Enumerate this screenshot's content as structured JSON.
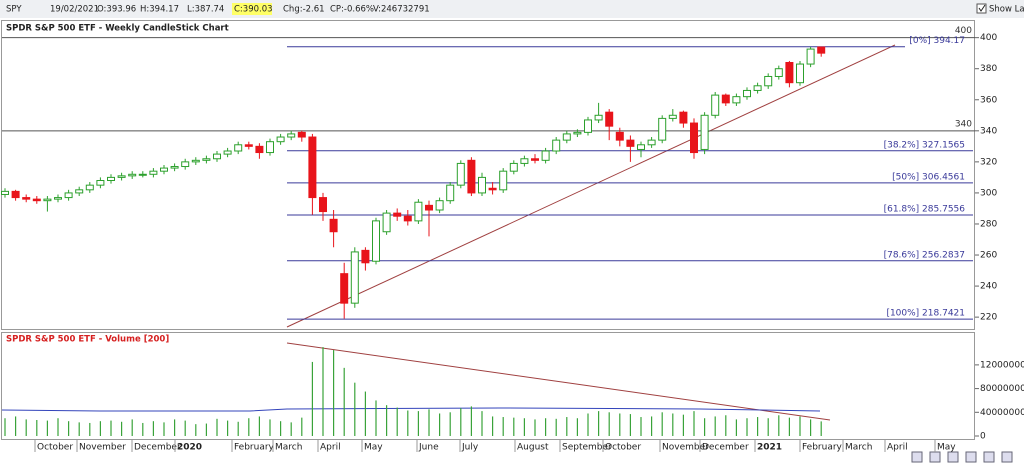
{
  "header": {
    "symbol": "SPY",
    "date": "19/02/2021",
    "open": "O:393.96",
    "high": "H:394.17",
    "low": "L:387.74",
    "close": "C:390.03",
    "change": "Chg:-2.61",
    "change_pct": "CP:-0.66%",
    "volume": "V:246732791",
    "show_last": "Show Last"
  },
  "chart_data": [
    {
      "type": "candlestick",
      "title": "SPDR S&P 500 ETF - Weekly CandleStick Chart",
      "x_labels": [
        "October",
        "November",
        "December",
        "2020",
        "February",
        "March",
        "April",
        "May",
        "June",
        "July",
        "August",
        "September",
        "October",
        "November",
        "December",
        "2021",
        "February",
        "March",
        "April",
        "May"
      ],
      "open": [
        299,
        301,
        297,
        296,
        295,
        296,
        297,
        300,
        302,
        305,
        308,
        310,
        311,
        312,
        312,
        314,
        316,
        317,
        320,
        321,
        322,
        325,
        327,
        331,
        330,
        326,
        333,
        336,
        339,
        336,
        297,
        283,
        248,
        229,
        263,
        256,
        275,
        287,
        285,
        282,
        292,
        289,
        295,
        305,
        321,
        300,
        303,
        302,
        314,
        319,
        322,
        321,
        327,
        334,
        338,
        339,
        347,
        352,
        339,
        334,
        328,
        331,
        334,
        348,
        352,
        345,
        328,
        350,
        363,
        358,
        362,
        366,
        369,
        375,
        384,
        371,
        383,
        393.96
      ],
      "high": [
        303,
        302,
        299,
        298,
        298,
        299,
        302,
        304,
        307,
        310,
        312,
        313,
        314,
        314,
        316,
        318,
        319,
        322,
        323,
        324,
        327,
        329,
        333,
        333,
        332,
        335,
        338,
        340,
        340,
        338,
        300,
        289,
        255,
        265,
        265,
        284,
        289,
        290,
        289,
        296,
        295,
        297,
        307,
        321,
        323,
        313,
        307,
        316,
        321,
        324,
        325,
        329,
        336,
        340,
        341,
        349,
        358,
        354,
        342,
        337,
        333,
        336,
        350,
        354,
        353,
        348,
        352,
        365,
        364,
        364,
        368,
        371,
        377,
        382,
        385,
        385,
        394,
        394.17
      ],
      "low": [
        297,
        295,
        294,
        293,
        288,
        294,
        295,
        298,
        300,
        303,
        306,
        308,
        309,
        310,
        310,
        312,
        314,
        315,
        318,
        319,
        320,
        323,
        325,
        328,
        322,
        324,
        331,
        334,
        333,
        286,
        282,
        265,
        219,
        226,
        250,
        254,
        273,
        282,
        279,
        280,
        272,
        287,
        293,
        303,
        298,
        298,
        299,
        300,
        312,
        317,
        319,
        319,
        325,
        332,
        336,
        337,
        345,
        334,
        330,
        320,
        323,
        329,
        332,
        346,
        342,
        322,
        325,
        348,
        356,
        356,
        360,
        364,
        367,
        373,
        368,
        369,
        381,
        387.74
      ],
      "close": [
        301,
        297,
        296,
        295,
        296,
        297,
        300,
        302,
        305,
        308,
        310,
        311,
        312,
        312,
        314,
        316,
        317,
        320,
        321,
        322,
        325,
        327,
        331,
        330,
        326,
        333,
        336,
        338,
        336,
        297,
        288,
        275,
        229,
        262,
        255,
        282,
        287,
        285,
        282,
        294,
        289,
        295,
        305,
        319,
        300,
        310,
        302,
        314,
        319,
        322,
        321,
        327,
        334,
        338,
        339,
        347,
        350,
        343,
        334,
        330,
        331,
        334,
        348,
        350,
        345,
        326,
        350,
        363,
        358,
        362,
        366,
        369,
        375,
        380,
        371,
        383,
        392.64,
        390.03
      ],
      "up_color": "#2ca02c",
      "down_color": "#e8141b",
      "ylim": [
        213,
        403
      ],
      "yticks": [
        220,
        240,
        260,
        280,
        300,
        320,
        340,
        360,
        380,
        400
      ],
      "levels": [
        400,
        340
      ],
      "fib_levels": [
        {
          "value": 394.17,
          "label": "[0%] 394.17"
        },
        {
          "value": 327.1565,
          "label": "[38.2%] 327.1565"
        },
        {
          "value": 306.4561,
          "label": "[50%] 306.4561"
        },
        {
          "value": 285.7556,
          "label": "[61.8%] 285.7556"
        },
        {
          "value": 256.2837,
          "label": "[78.6%] 256.2837"
        },
        {
          "value": 218.7421,
          "label": "[100%] 218.7421"
        }
      ]
    },
    {
      "type": "bar",
      "title": "SPDR S&P 500 ETF - Volume [200]",
      "color": "#3aa33a",
      "values": [
        300000000,
        330000000,
        280000000,
        270000000,
        260000000,
        300000000,
        250000000,
        230000000,
        220000000,
        250000000,
        260000000,
        240000000,
        280000000,
        220000000,
        250000000,
        230000000,
        280000000,
        260000000,
        200000000,
        210000000,
        290000000,
        260000000,
        240000000,
        300000000,
        330000000,
        280000000,
        250000000,
        230000000,
        310000000,
        1250000000,
        1500000000,
        1450000000,
        1150000000,
        900000000,
        750000000,
        600000000,
        520000000,
        480000000,
        430000000,
        420000000,
        450000000,
        380000000,
        400000000,
        470000000,
        500000000,
        420000000,
        330000000,
        320000000,
        310000000,
        300000000,
        280000000,
        300000000,
        290000000,
        320000000,
        300000000,
        380000000,
        420000000,
        400000000,
        380000000,
        370000000,
        320000000,
        330000000,
        400000000,
        380000000,
        360000000,
        420000000,
        300000000,
        330000000,
        350000000,
        280000000,
        300000000,
        320000000,
        300000000,
        350000000,
        310000000,
        330000000,
        280000000,
        246732791
      ],
      "ylim": [
        0,
        1620000000
      ],
      "yticks": [
        0,
        400000000,
        800000000,
        1200000000
      ]
    }
  ]
}
